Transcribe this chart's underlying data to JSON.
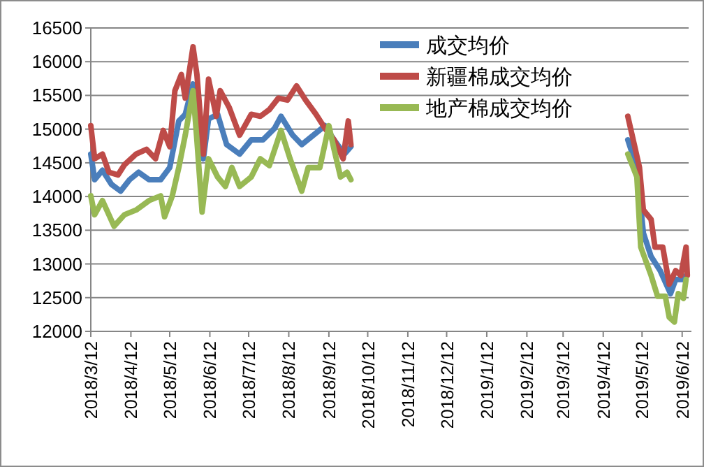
{
  "chart_data": {
    "type": "line",
    "xlim": [
      "2018-03-12",
      "2019-06-17"
    ],
    "xticks": [
      {
        "value": "2018-03-12",
        "label": "2018/3/12"
      },
      {
        "value": "2018-04-12",
        "label": "2018/4/12"
      },
      {
        "value": "2018-05-12",
        "label": "2018/5/12"
      },
      {
        "value": "2018-06-12",
        "label": "2018/6/12"
      },
      {
        "value": "2018-07-12",
        "label": "2018/7/12"
      },
      {
        "value": "2018-08-12",
        "label": "2018/8/12"
      },
      {
        "value": "2018-09-12",
        "label": "2018/9/12"
      },
      {
        "value": "2018-10-12",
        "label": "2018/10/12"
      },
      {
        "value": "2018-11-12",
        "label": "2018/11/12"
      },
      {
        "value": "2018-12-12",
        "label": "2018/12/12"
      },
      {
        "value": "2019-01-12",
        "label": "2019/1/12"
      },
      {
        "value": "2019-02-12",
        "label": "2019/2/12"
      },
      {
        "value": "2019-03-12",
        "label": "2019/3/12"
      },
      {
        "value": "2019-04-12",
        "label": "2019/4/12"
      },
      {
        "value": "2019-05-12",
        "label": "2019/5/12"
      },
      {
        "value": "2019-06-12",
        "label": "2019/6/12"
      }
    ],
    "ylim": [
      12000,
      16500
    ],
    "yticks": [
      12000,
      12500,
      13000,
      13500,
      14000,
      14500,
      15000,
      15500,
      16000,
      16500
    ],
    "grid": "y",
    "legend": "top right",
    "marker": "none",
    "line_style": "solid",
    "series": [
      {
        "name": "成交均价",
        "color": "#4a7ebb",
        "x": [
          "2018-03-12",
          "2018-03-15",
          "2018-03-21",
          "2018-03-28",
          "2018-04-04",
          "2018-04-11",
          "2018-04-18",
          "2018-04-26",
          "2018-05-05",
          "2018-05-12",
          "2018-05-19",
          "2018-05-24",
          "2018-05-30",
          "2018-06-07",
          "2018-06-11",
          "2018-06-18",
          "2018-06-25",
          "2018-07-05",
          "2018-07-14",
          "2018-07-23",
          "2018-08-01",
          "2018-08-06",
          "2018-08-15",
          "2018-08-22",
          "2018-08-31",
          "2018-09-09",
          "2018-09-16",
          "2018-09-24",
          "2018-09-29",
          "2019-05-01",
          "2019-05-08",
          "2019-05-13",
          "2019-05-19",
          "2019-05-26",
          "2019-06-03",
          "2019-06-07",
          "2019-06-13",
          "2019-06-15"
        ],
        "values": [
          14630,
          14250,
          14390,
          14180,
          14080,
          14250,
          14360,
          14250,
          14250,
          14430,
          15120,
          15220,
          15670,
          14560,
          15150,
          15220,
          14770,
          14630,
          14840,
          14840,
          15010,
          15190,
          14910,
          14770,
          14910,
          15050,
          14840,
          14630,
          14740,
          14840,
          14430,
          13460,
          13110,
          12900,
          12560,
          12770,
          12770,
          12830
        ]
      },
      {
        "name": "新疆棉成交均价",
        "color": "#be4b48",
        "x": [
          "2018-03-12",
          "2018-03-15",
          "2018-03-21",
          "2018-03-26",
          "2018-04-02",
          "2018-04-07",
          "2018-04-16",
          "2018-04-24",
          "2018-05-01",
          "2018-05-07",
          "2018-05-12",
          "2018-05-16",
          "2018-05-21",
          "2018-05-24",
          "2018-05-30",
          "2018-06-02",
          "2018-06-07",
          "2018-06-11",
          "2018-06-17",
          "2018-06-20",
          "2018-06-27",
          "2018-07-05",
          "2018-07-14",
          "2018-07-21",
          "2018-07-28",
          "2018-08-04",
          "2018-08-11",
          "2018-08-18",
          "2018-08-25",
          "2018-09-02",
          "2018-09-09",
          "2018-09-16",
          "2018-09-23",
          "2018-09-27",
          "2018-09-29",
          "2019-05-01",
          "2019-05-06",
          "2019-05-10",
          "2019-05-13",
          "2019-05-19",
          "2019-05-22",
          "2019-05-28",
          "2019-06-02",
          "2019-06-07",
          "2019-06-11",
          "2019-06-15",
          "2019-06-16"
        ],
        "values": [
          15050,
          14560,
          14630,
          14360,
          14320,
          14470,
          14630,
          14700,
          14560,
          14980,
          14740,
          15570,
          15810,
          15460,
          16220,
          15810,
          14630,
          15740,
          15190,
          15570,
          15320,
          14910,
          15220,
          15190,
          15290,
          15460,
          15430,
          15640,
          15430,
          15220,
          15010,
          14840,
          14560,
          15120,
          14770,
          15190,
          14770,
          14430,
          13800,
          13660,
          13250,
          13250,
          12700,
          12900,
          12830,
          13250,
          12830
        ]
      },
      {
        "name": "地产棉成交均价",
        "color": "#98b954",
        "x": [
          "2018-03-12",
          "2018-03-15",
          "2018-03-21",
          "2018-03-30",
          "2018-04-07",
          "2018-04-16",
          "2018-04-26",
          "2018-05-05",
          "2018-05-08",
          "2018-05-14",
          "2018-05-19",
          "2018-05-24",
          "2018-05-30",
          "2018-06-02",
          "2018-06-06",
          "2018-06-11",
          "2018-06-18",
          "2018-06-24",
          "2018-06-29",
          "2018-07-05",
          "2018-07-14",
          "2018-07-21",
          "2018-07-28",
          "2018-08-06",
          "2018-08-13",
          "2018-08-22",
          "2018-08-27",
          "2018-09-05",
          "2018-09-12",
          "2018-09-16",
          "2018-09-21",
          "2018-09-26",
          "2018-09-29",
          "2019-05-01",
          "2019-05-08",
          "2019-05-11",
          "2019-05-19",
          "2019-05-24",
          "2019-05-30",
          "2019-06-02",
          "2019-06-06",
          "2019-06-09",
          "2019-06-13",
          "2019-06-15"
        ],
        "values": [
          14010,
          13730,
          13940,
          13560,
          13730,
          13800,
          13940,
          14010,
          13700,
          14010,
          14430,
          14910,
          15570,
          14840,
          13770,
          14560,
          14290,
          14150,
          14430,
          14150,
          14290,
          14560,
          14460,
          14980,
          14560,
          14080,
          14430,
          14430,
          15050,
          14700,
          14290,
          14360,
          14250,
          14630,
          14290,
          13250,
          12830,
          12520,
          12520,
          12210,
          12140,
          12560,
          12490,
          12770
        ]
      }
    ]
  }
}
